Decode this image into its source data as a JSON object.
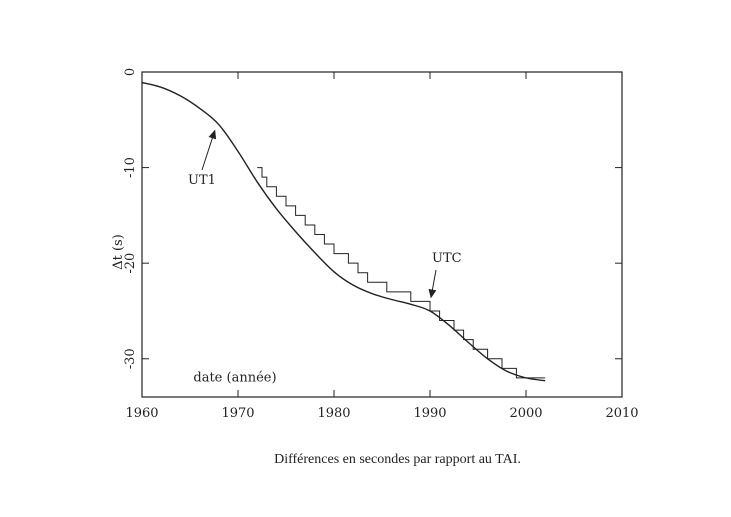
{
  "caption": "Différences en secondes par rapport au TAI.",
  "chart_data": {
    "type": "line",
    "title": "",
    "xlabel": "",
    "ylabel": "Δt (s)",
    "xlim": [
      1960,
      2010
    ],
    "ylim": [
      -34,
      0
    ],
    "x_ticks": [
      1960,
      1970,
      1980,
      1990,
      2000,
      2010
    ],
    "y_ticks": [
      0,
      -10,
      -20,
      -30
    ],
    "grid": false,
    "annotations": [
      {
        "text": "UT1",
        "points_to": [
          1968,
          -5.5
        ]
      },
      {
        "text": "UTC",
        "points_to": [
          1990,
          -24
        ]
      },
      {
        "text": "date (année)",
        "at": [
          1964,
          -32.5
        ]
      }
    ],
    "series": [
      {
        "name": "UT1",
        "style": "smooth",
        "x": [
          1960,
          1962,
          1964,
          1966,
          1968,
          1970,
          1972,
          1974,
          1976,
          1978,
          1980,
          1982,
          1984,
          1986,
          1988,
          1990,
          1992,
          1994,
          1996,
          1998,
          2000,
          2002
        ],
        "y": [
          -1.1,
          -1.6,
          -2.5,
          -3.8,
          -5.5,
          -8.3,
          -11.5,
          -14.3,
          -16.7,
          -18.9,
          -20.9,
          -22.3,
          -23.2,
          -23.8,
          -24.3,
          -25,
          -26.5,
          -28.3,
          -30,
          -31.3,
          -32,
          -32.3
        ]
      },
      {
        "name": "UTC",
        "style": "step",
        "x": [
          1972,
          1972.5,
          1973,
          1974,
          1975,
          1976,
          1977,
          1978,
          1979,
          1980,
          1981.5,
          1982.5,
          1983.5,
          1985.5,
          1988,
          1990,
          1991,
          1992.5,
          1993.5,
          1994.5,
          1996,
          1997.5,
          1999,
          2002
        ],
        "y": [
          -10,
          -11,
          -12,
          -13,
          -14,
          -15,
          -16,
          -17,
          -18,
          -19,
          -20,
          -21,
          -22,
          -23,
          -24,
          -25,
          -26,
          -27,
          -28,
          -29,
          -30,
          -31,
          -32,
          -32
        ]
      }
    ]
  }
}
